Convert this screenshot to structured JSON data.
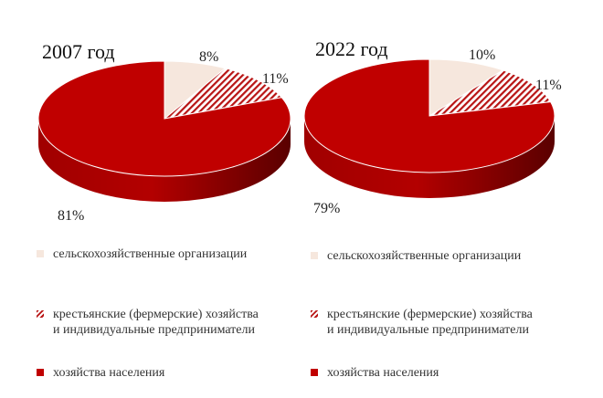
{
  "chart_data": [
    {
      "type": "pie",
      "title": "2007 год",
      "categories": [
        "сельскохозяйственные организации",
        "крестьянские (фермерские) хозяйства и индивидуальные предприниматели",
        "хозяйства населения"
      ],
      "values": [
        8,
        11,
        81
      ],
      "labels": [
        "8%",
        "11%",
        "81%"
      ]
    },
    {
      "type": "pie",
      "title": "2022 год",
      "categories": [
        "сельскохозяйственные организации",
        "крестьянские (фермерские) хозяйства и индивидуальные предприниматели",
        "хозяйства населения"
      ],
      "values": [
        10,
        11,
        79
      ],
      "labels": [
        "10%",
        "11%",
        "79%"
      ]
    }
  ],
  "legend": [
    {
      "line1": "сельскохозяйственные организации",
      "line2": ""
    },
    {
      "line1": "крестьянские (фермерские) хозяйства",
      "line2": "и индивидуальные предприниматели"
    },
    {
      "line1": "хозяйства населения",
      "line2": ""
    }
  ],
  "colors": {
    "series0": "#f6e7dd",
    "series1_stripe": "#b81414",
    "series2": "#c00000",
    "series2_side": "#8c0000"
  }
}
